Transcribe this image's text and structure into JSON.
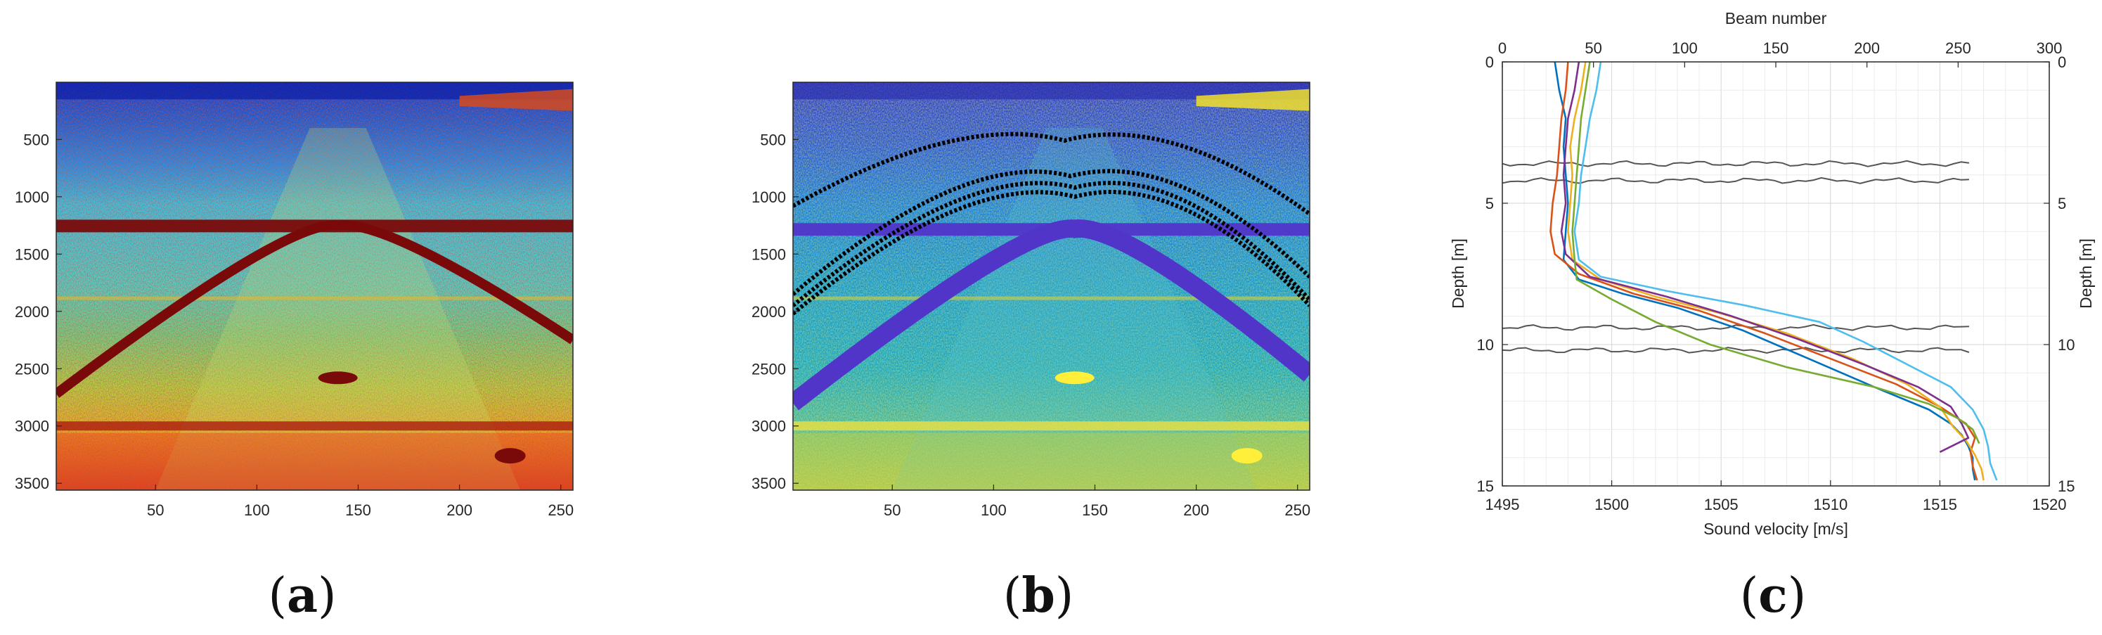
{
  "colors": {
    "jet_background": "#2fc3e8",
    "parula_background": "#1e7fd8",
    "tracks": "#000000",
    "arc_band_a": "#7a0a0a",
    "arc_band_b": "#5135c9",
    "profile_colors": [
      "#0072bd",
      "#d95319",
      "#edb120",
      "#7e2f8e",
      "#77ac30",
      "#4dbeee"
    ],
    "wavy_lines": "#555555"
  },
  "chart_data": [
    {
      "id": "a",
      "type": "heatmap",
      "colormap": "jet",
      "panel_label": "a",
      "xticks": [
        "50",
        "100",
        "150",
        "200",
        "250"
      ],
      "xtick_values": [
        50,
        100,
        150,
        200,
        250
      ],
      "yticks": [
        "500",
        "1000",
        "1500",
        "2000",
        "2500",
        "3000",
        "3500"
      ],
      "ytick_values": [
        500,
        1000,
        1500,
        2000,
        2500,
        3000,
        3500
      ],
      "xlim": [
        1,
        256
      ],
      "ylim": [
        1,
        3560
      ],
      "features": {
        "horizontal_band_y": 1250,
        "arc_peak": {
          "x": 140,
          "y": 1250
        },
        "arc_left_end": {
          "x": 1,
          "y": 2720
        },
        "arc_right_end": {
          "x": 256,
          "y": 2250
        },
        "bright_band_y": 3000,
        "mid_reflector_y": 1850
      }
    },
    {
      "id": "b",
      "type": "heatmap",
      "colormap": "parula",
      "panel_label": "b",
      "xticks": [
        "50",
        "100",
        "150",
        "200",
        "250"
      ],
      "xtick_values": [
        50,
        100,
        150,
        200,
        250
      ],
      "yticks": [
        "500",
        "1000",
        "1500",
        "2000",
        "2500",
        "3000",
        "3500"
      ],
      "ytick_values": [
        500,
        1000,
        1500,
        2000,
        2500,
        3000,
        3500
      ],
      "xlim": [
        1,
        256
      ],
      "ylim": [
        1,
        3560
      ],
      "features": {
        "horizontal_band_y": 1280,
        "arc_peak": {
          "x": 140,
          "y": 1280
        },
        "arc_left_end": {
          "x": 1,
          "y": 2800
        },
        "arc_right_end": {
          "x": 256,
          "y": 2550
        },
        "bright_band_y": 3000,
        "tracked_arcs": [
          {
            "peak_x": 135,
            "peak_y": 510,
            "left_y": 1080,
            "right_y": 1150
          },
          {
            "peak_x": 138,
            "peak_y": 820,
            "left_y": 1850,
            "right_y": 1700
          },
          {
            "peak_x": 140,
            "peak_y": 920,
            "left_y": 1950,
            "right_y": 1900
          },
          {
            "peak_x": 140,
            "peak_y": 1000,
            "left_y": 2020,
            "right_y": 1950
          }
        ]
      }
    },
    {
      "id": "c",
      "type": "line",
      "panel_label": "c",
      "xlabel": "Sound velocity [m/s]",
      "ylabel": "Depth [m]",
      "top_xlabel": "Beam number",
      "right_ylabel": "Depth [m]",
      "xlim": [
        1495,
        1520
      ],
      "ylim": [
        0,
        15
      ],
      "top_xlim": [
        0,
        300
      ],
      "xticks": [
        "1495",
        "1500",
        "1505",
        "1510",
        "1515",
        "1520"
      ],
      "xtick_values": [
        1495,
        1500,
        1505,
        1510,
        1515,
        1520
      ],
      "top_xticks": [
        "0",
        "50",
        "100",
        "150",
        "200",
        "250",
        "300"
      ],
      "top_xtick_values": [
        0,
        50,
        100,
        150,
        200,
        250,
        300
      ],
      "yticks": [
        "0",
        "5",
        "10",
        "15"
      ],
      "ytick_values": [
        0,
        5,
        10,
        15
      ],
      "grid": true,
      "series": [
        {
          "depth": [
            0,
            1,
            2,
            3,
            4,
            5,
            6,
            7,
            7.7,
            8.2,
            8.7,
            9.5,
            10.5,
            11.5,
            12.3,
            12.8,
            13.2,
            13.6,
            14.0,
            14.4,
            14.8
          ],
          "velocity": [
            1497.4,
            1497.6,
            1497.9,
            1497.8,
            1497.9,
            1498.0,
            1497.9,
            1497.8,
            1498.5,
            1500.5,
            1503.0,
            1506.0,
            1509.0,
            1512.0,
            1514.5,
            1515.5,
            1516.0,
            1516.3,
            1516.5,
            1516.5,
            1516.6
          ]
        },
        {
          "depth": [
            0,
            1,
            2,
            3,
            4,
            5,
            6,
            6.8,
            7.5,
            8.2,
            8.8,
            9.6,
            10.5,
            11.4,
            12.2,
            12.8,
            13.3,
            13.8,
            14.3,
            14.8
          ],
          "velocity": [
            1498.0,
            1497.9,
            1497.7,
            1497.6,
            1497.5,
            1497.3,
            1497.2,
            1497.4,
            1498.5,
            1501.0,
            1504.0,
            1507.0,
            1510.0,
            1513.0,
            1515.0,
            1516.2,
            1516.6,
            1516.4,
            1516.5,
            1516.7
          ]
        },
        {
          "depth": [
            0,
            1,
            2,
            3,
            4,
            5,
            6,
            7,
            7.7,
            8.3,
            8.9,
            9.6,
            10.5,
            11.4,
            12.2,
            12.9,
            13.4,
            13.9,
            14.4,
            14.8
          ],
          "velocity": [
            1498.8,
            1498.6,
            1498.3,
            1498.1,
            1498.2,
            1498.1,
            1498.0,
            1498.2,
            1499.5,
            1502.0,
            1505.0,
            1508.0,
            1511.0,
            1513.5,
            1515.0,
            1515.6,
            1516.2,
            1516.6,
            1516.9,
            1517.0
          ]
        },
        {
          "depth": [
            0,
            1,
            2,
            3,
            4,
            5,
            6,
            6.8,
            7.6,
            8.3,
            9.0,
            9.8,
            10.7,
            11.5,
            12.2,
            12.8,
            13.3,
            13.8
          ],
          "velocity": [
            1498.5,
            1498.3,
            1498.0,
            1497.9,
            1497.8,
            1497.9,
            1497.7,
            1497.9,
            1499.0,
            1502.5,
            1505.5,
            1508.5,
            1511.5,
            1514.0,
            1515.5,
            1516.0,
            1516.3,
            1515.0
          ]
        },
        {
          "depth": [
            0,
            1,
            2,
            3,
            4,
            5,
            6,
            7,
            7.7,
            8.4,
            9.2,
            10.0,
            10.8,
            11.5,
            12.1,
            12.6,
            13.0,
            13.5
          ],
          "velocity": [
            1499.0,
            1498.8,
            1498.6,
            1498.5,
            1498.4,
            1498.3,
            1498.2,
            1498.3,
            1498.4,
            1500.0,
            1502.0,
            1504.5,
            1508.0,
            1512.0,
            1514.5,
            1515.8,
            1516.5,
            1516.8
          ]
        },
        {
          "depth": [
            0,
            1,
            2,
            3,
            4,
            5,
            6,
            7,
            7.6,
            8.1,
            8.6,
            9.2,
            9.9,
            10.7,
            11.5,
            12.3,
            13.0,
            13.6,
            14.2,
            14.8
          ],
          "velocity": [
            1499.5,
            1499.3,
            1499.0,
            1498.8,
            1498.6,
            1498.5,
            1498.3,
            1498.5,
            1499.5,
            1502.5,
            1506.0,
            1509.5,
            1511.5,
            1513.5,
            1515.5,
            1516.5,
            1517.0,
            1517.2,
            1517.3,
            1517.6
          ]
        }
      ],
      "wavy_lines": [
        {
          "depth": 3.6,
          "beam_start": 0,
          "beam_end": 256
        },
        {
          "depth": 4.2,
          "beam_start": 0,
          "beam_end": 256
        },
        {
          "depth": 9.4,
          "beam_start": 0,
          "beam_end": 256
        },
        {
          "depth": 10.2,
          "beam_start": 0,
          "beam_end": 256
        }
      ]
    }
  ]
}
